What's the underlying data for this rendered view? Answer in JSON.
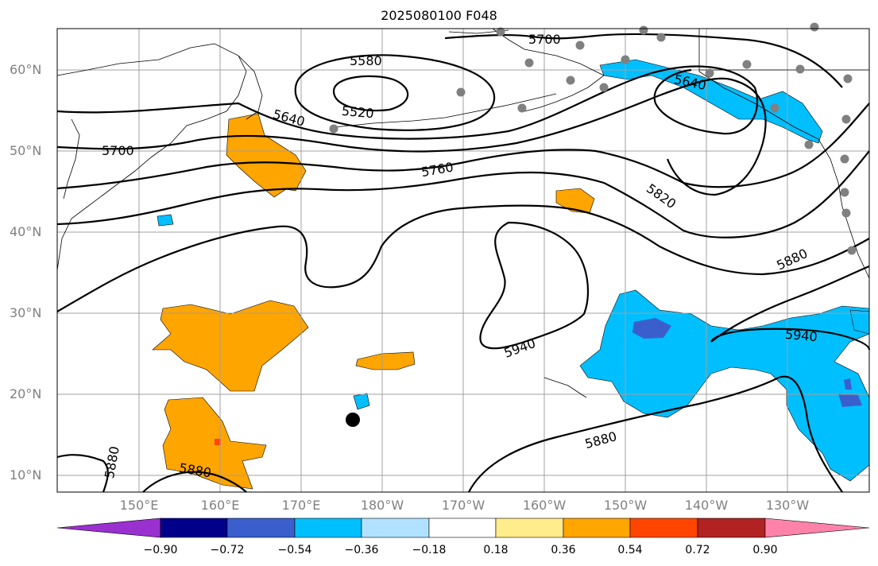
{
  "title": "2025080100 F048",
  "lat_ticks": [
    "60°N",
    "50°N",
    "40°N",
    "30°N",
    "20°N",
    "10°N"
  ],
  "lon_ticks": [
    "150°E",
    "160°E",
    "170°E",
    "180°W",
    "170°W",
    "160°W",
    "150°W",
    "140°W",
    "130°W"
  ],
  "contour_levels": [
    "5520",
    "5580",
    "5640",
    "5700",
    "5760",
    "5820",
    "5880",
    "5940"
  ],
  "contour_labels": {
    "c5520": "5520",
    "c5580": "5580",
    "c5640w": "5640",
    "c5640e": "5640",
    "c5700w": "5700",
    "c5700n": "5700",
    "c5760": "5760",
    "c5820": "5820",
    "c5880e": "5880",
    "c5880s": "5880",
    "c5880sw": "5880",
    "c5880w": "5880",
    "c5940c": "5940",
    "c5940e": "5940"
  },
  "colorbar": {
    "ticks": [
      "−0.90",
      "−0.72",
      "−0.54",
      "−0.36",
      "−0.18",
      "0.18",
      "0.36",
      "0.54",
      "0.72",
      "0.90"
    ],
    "colors": [
      "#9b30d0",
      "#00008b",
      "#3a5fcd",
      "#00bfff",
      "#b0e2ff",
      "#ffffff",
      "#ffec8b",
      "#ffa500",
      "#ff4500",
      "#b22222",
      "#ff82ab"
    ]
  },
  "colors": {
    "positive_anomaly": "#ffa500",
    "negative_anomaly": "#00bfff",
    "strong_negative": "#3a5fcd",
    "station_marker": "#808080",
    "gridline": "#a0a0a0"
  }
}
